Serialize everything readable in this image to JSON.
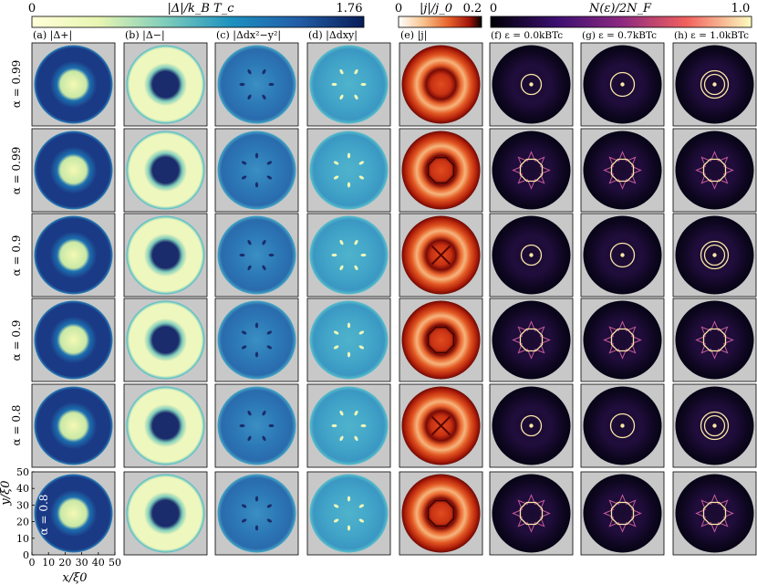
{
  "colorbars": [
    {
      "label": "|Δ|/k_B T_c",
      "min": "0",
      "max": "1.76",
      "colormap": "YlGnBu"
    },
    {
      "label": "|j|/j_0",
      "min": "0",
      "max": "0.2",
      "colormap": "gist_heat_r"
    },
    {
      "label": "N(ε)/2N_F",
      "min": "0",
      "max": "1.0",
      "colormap": "magma"
    }
  ],
  "column_titles": [
    "(a) |Δ+|",
    "(b) |Δ−|",
    "(c) |Δdx²−y²|",
    "(d) |Δdxy|",
    "(e) |j|",
    "(f) ε = 0.0kBTc",
    "(g) ε = 0.7kBTc",
    "(h) ε = 1.0kBTc"
  ],
  "row_labels": [
    "α = 0.99",
    "α = 0.99",
    "α = 0.9",
    "α = 0.9",
    "α = 0.8"
  ],
  "inset_label": "α = 0.8",
  "axes": {
    "xlabel": "x/ξ0",
    "ylabel": "y/ξ0",
    "xticks": [
      "0",
      "10",
      "20",
      "30",
      "40",
      "50"
    ],
    "yticks": [
      "0",
      "10",
      "20",
      "30",
      "40",
      "50"
    ]
  },
  "colors": {
    "background": "#c8c8c8",
    "gap_dark": "#1a2c6b",
    "gap_mid": "#2b73b3",
    "gap_light": "#f0f8b8",
    "current_dark": "#7a0a05",
    "current_mid": "#d9431e",
    "current_light": "#f3c08a",
    "dos_dark": "#070416",
    "dos_mid": "#8b2a7a",
    "dos_light": "#fcf3b0"
  }
}
